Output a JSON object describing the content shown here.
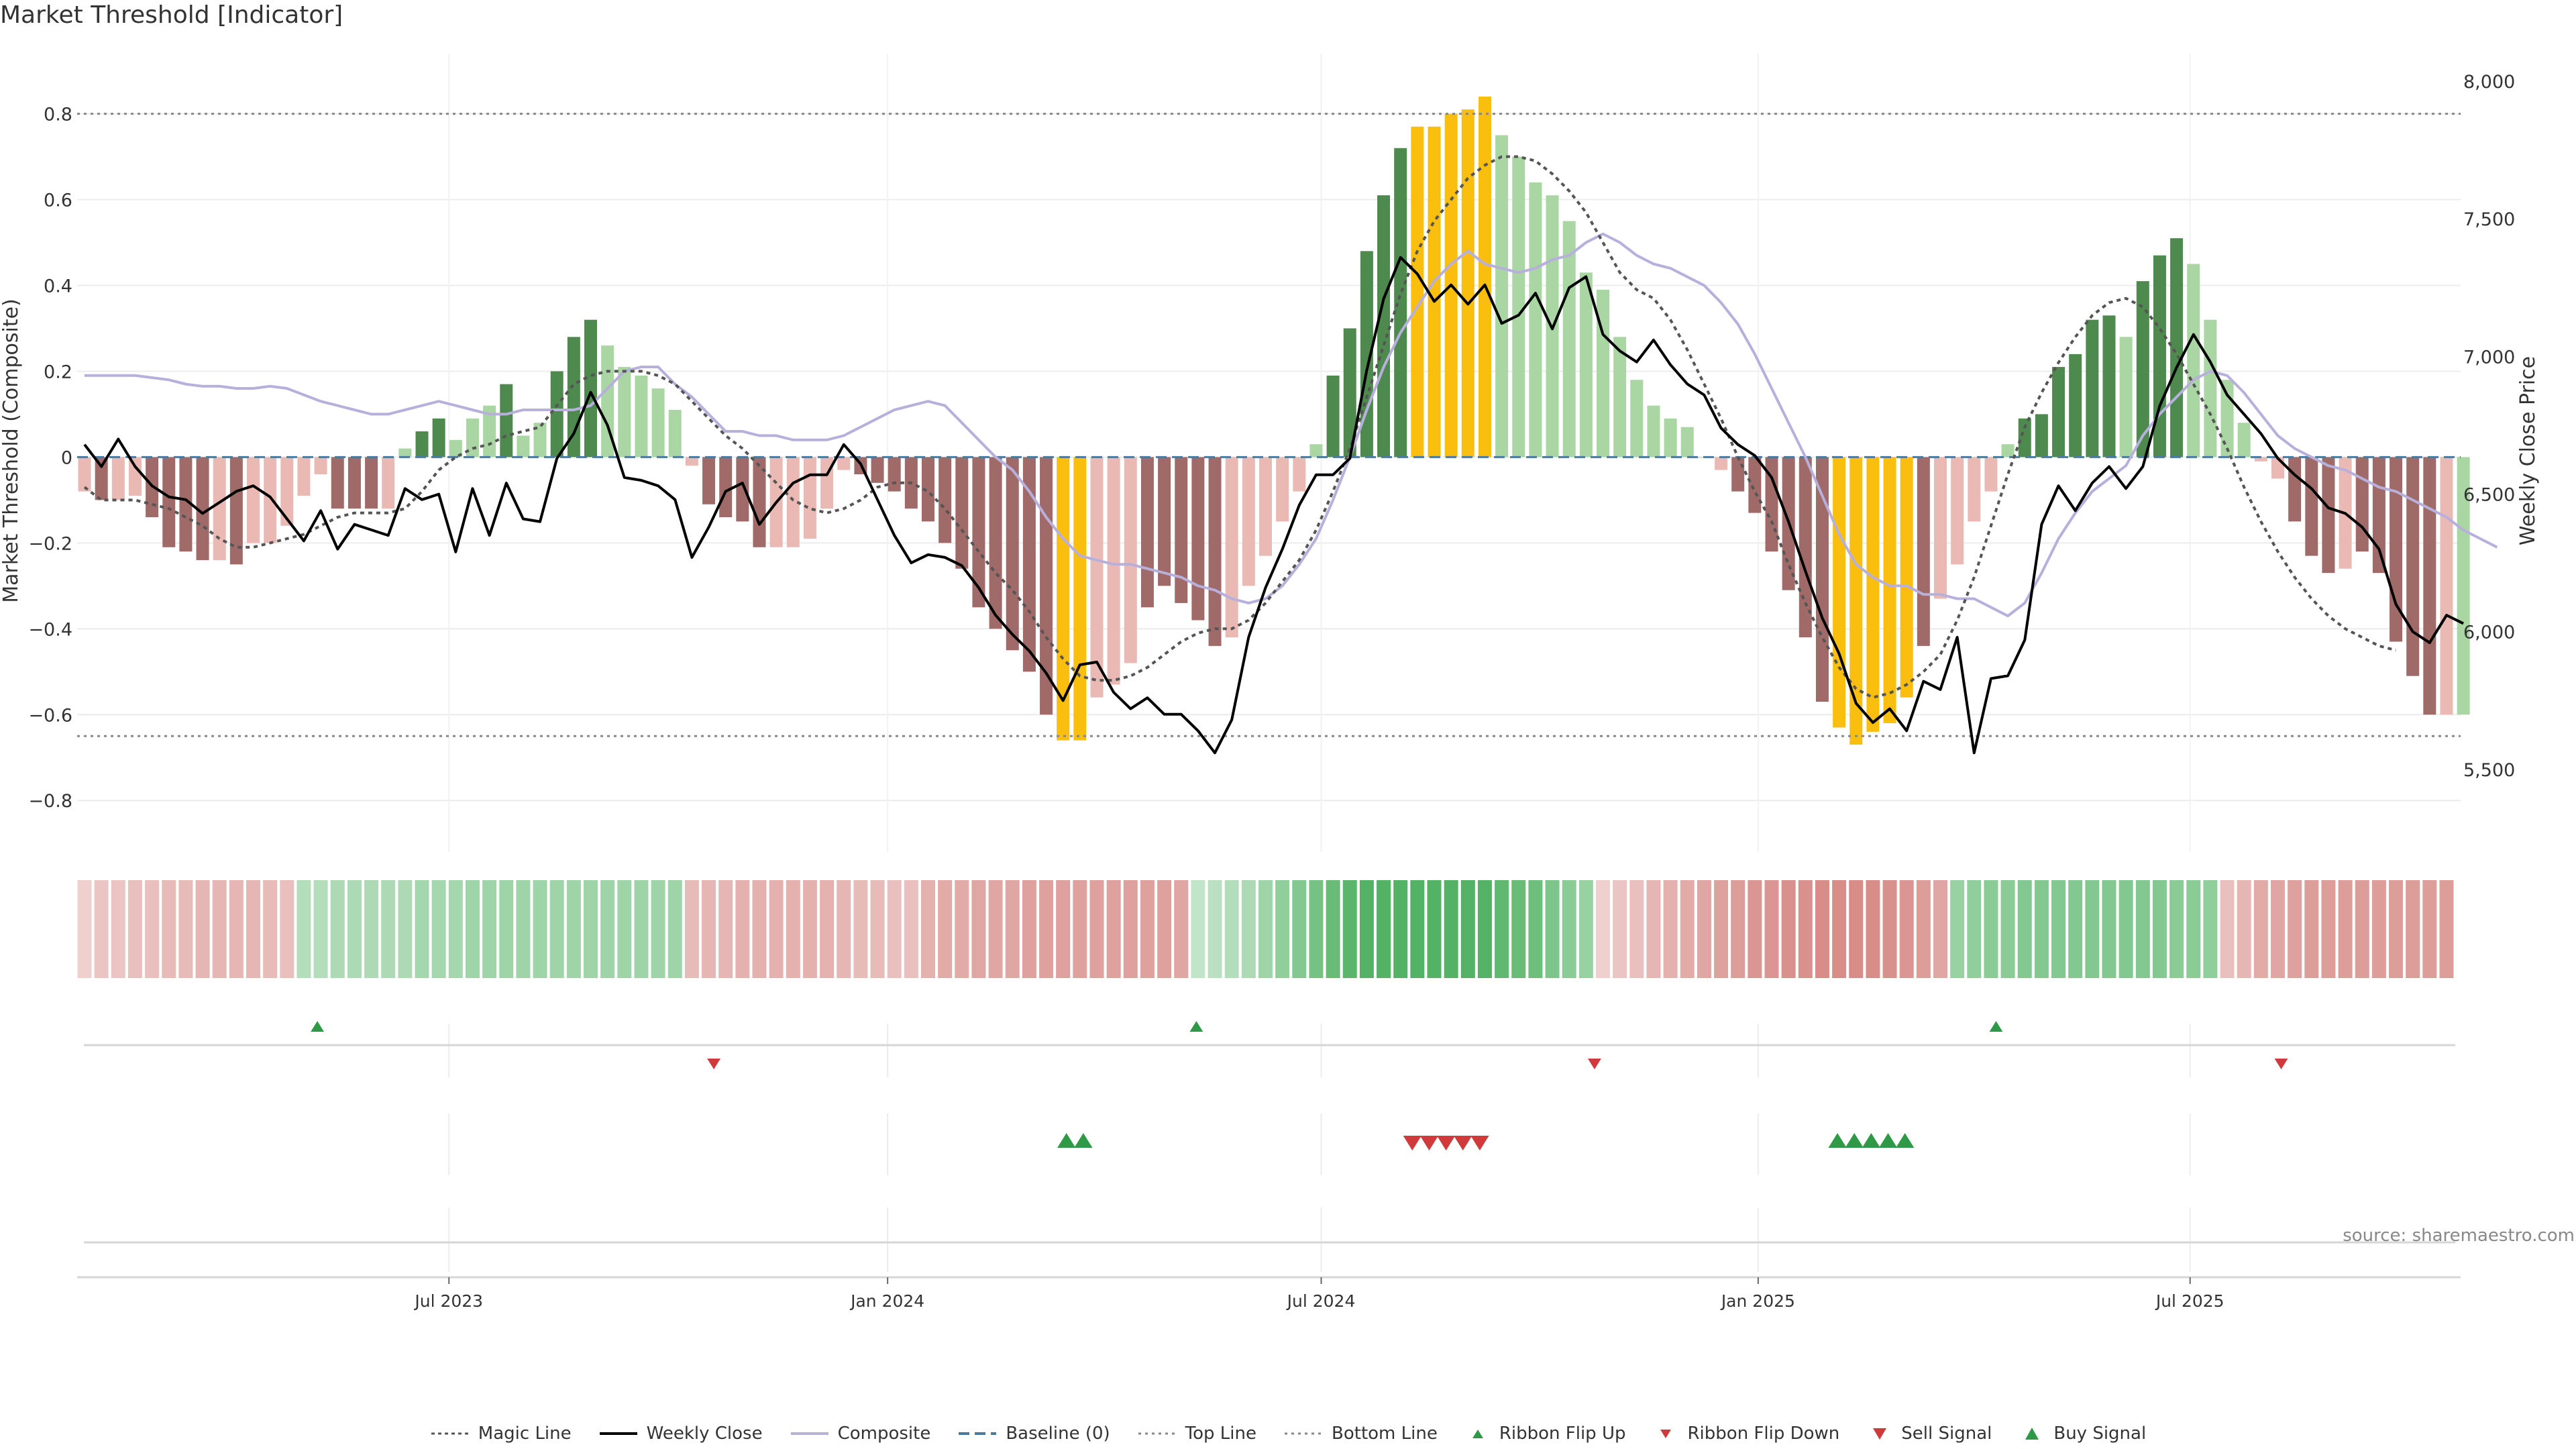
{
  "title": "Market Threshold [Indicator]",
  "source": "source: sharemaestro.com",
  "colors": {
    "strong_pos": "#4e8a4e",
    "weak_pos": "#a9d6a3",
    "strong_neg": "#a06a68",
    "weak_neg": "#eab9b4",
    "extreme": "#f9be0e",
    "weekly_close": "#000000",
    "composite": "#b8b0dc",
    "magic": "#555555",
    "baseline": "#4a7aa0",
    "threshold_line": "#888888",
    "buy": "#2e9a48",
    "sell": "#d03a3a"
  },
  "chart_data": {
    "type": "bar",
    "ylabel_left": "Market Threshold (Composite)",
    "ylabel_right": "Weekly Close Price",
    "ylim_left": [
      -0.92,
      0.94
    ],
    "ylim_right": [
      5200,
      8100
    ],
    "yticks_left": [
      "0.8",
      "0.6",
      "0.4",
      "0.2",
      "0",
      "−0.2",
      "−0.4",
      "−0.6",
      "−0.8"
    ],
    "yticks_left_values": [
      0.8,
      0.6,
      0.4,
      0.2,
      0,
      -0.2,
      -0.4,
      -0.6,
      -0.8
    ],
    "yticks_right": [
      "8,000",
      "7,500",
      "7,000",
      "6,500",
      "6,000",
      "5,500"
    ],
    "yticks_right_values": [
      8000,
      7500,
      7000,
      6500,
      6000,
      5500
    ],
    "x_ticks": [
      "Jul 2023",
      "Jan 2024",
      "Jul 2024",
      "Jan 2025",
      "Jul 2025"
    ],
    "x_tick_index": [
      21.6,
      47.6,
      73.3,
      99.2,
      124.8
    ],
    "top_line": 0.8,
    "bottom_line": -0.65,
    "composite_bars": [
      -0.08,
      -0.1,
      -0.1,
      -0.09,
      -0.14,
      -0.21,
      -0.22,
      -0.24,
      -0.24,
      -0.25,
      -0.2,
      -0.2,
      -0.16,
      -0.09,
      -0.04,
      -0.12,
      -0.12,
      -0.12,
      -0.12,
      0.02,
      0.06,
      0.09,
      0.04,
      0.09,
      0.12,
      0.17,
      0.05,
      0.08,
      0.2,
      0.28,
      0.32,
      0.26,
      0.21,
      0.19,
      0.16,
      0.11,
      -0.02,
      -0.11,
      -0.14,
      -0.15,
      -0.21,
      -0.21,
      -0.21,
      -0.19,
      -0.12,
      -0.03,
      -0.04,
      -0.06,
      -0.08,
      -0.12,
      -0.15,
      -0.2,
      -0.26,
      -0.35,
      -0.4,
      -0.45,
      -0.5,
      -0.6,
      -0.66,
      -0.66,
      -0.56,
      -0.53,
      -0.48,
      -0.35,
      -0.3,
      -0.34,
      -0.38,
      -0.44,
      -0.42,
      -0.3,
      -0.23,
      -0.15,
      -0.08,
      0.03,
      0.19,
      0.3,
      0.48,
      0.61,
      0.72,
      0.77,
      0.77,
      0.8,
      0.81,
      0.84,
      0.75,
      0.7,
      0.64,
      0.61,
      0.55,
      0.43,
      0.39,
      0.28,
      0.18,
      0.12,
      0.09,
      0.07,
      0.0,
      -0.03,
      -0.08,
      -0.13,
      -0.22,
      -0.31,
      -0.42,
      -0.57,
      -0.63,
      -0.67,
      -0.64,
      -0.62,
      -0.56,
      -0.44,
      -0.33,
      -0.25,
      -0.15,
      -0.08,
      0.03,
      0.09,
      0.1,
      0.21,
      0.24,
      0.32,
      0.33,
      0.28,
      0.41,
      0.47,
      0.51,
      0.45,
      0.32,
      0.18,
      0.08,
      -0.01,
      -0.05,
      -0.15,
      -0.23,
      -0.27,
      -0.26,
      -0.22,
      -0.27,
      -0.43,
      -0.51,
      -0.6,
      -0.6,
      -0.6
    ],
    "bar_class": [
      "wn",
      "sn",
      "wn",
      "wn",
      "sn",
      "sn",
      "sn",
      "sn",
      "wn",
      "sn",
      "wn",
      "wn",
      "wn",
      "wn",
      "wn",
      "sn",
      "sn",
      "sn",
      "wn",
      "wp",
      "sp",
      "sp",
      "wp",
      "wp",
      "wp",
      "sp",
      "wp",
      "wp",
      "sp",
      "sp",
      "sp",
      "wp",
      "wp",
      "wp",
      "wp",
      "wp",
      "wn",
      "sn",
      "sn",
      "sn",
      "sn",
      "wn",
      "wn",
      "wn",
      "wn",
      "wn",
      "sn",
      "sn",
      "sn",
      "sn",
      "sn",
      "sn",
      "sn",
      "sn",
      "sn",
      "sn",
      "sn",
      "sn",
      "ex",
      "ex",
      "wn",
      "wn",
      "wn",
      "sn",
      "sn",
      "sn",
      "sn",
      "sn",
      "wn",
      "wn",
      "wn",
      "wn",
      "wn",
      "wp",
      "sp",
      "sp",
      "sp",
      "sp",
      "sp",
      "ex",
      "ex",
      "ex",
      "ex",
      "ex",
      "wp",
      "wp",
      "wp",
      "wp",
      "wp",
      "wp",
      "wp",
      "wp",
      "wp",
      "wp",
      "wp",
      "wp",
      "wp",
      "wn",
      "sn",
      "sn",
      "sn",
      "sn",
      "sn",
      "sn",
      "ex",
      "ex",
      "ex",
      "ex",
      "ex",
      "sn",
      "wn",
      "wn",
      "wn",
      "wn",
      "wp",
      "sp",
      "sp",
      "sp",
      "sp",
      "sp",
      "sp",
      "wp",
      "sp",
      "sp",
      "sp",
      "wp",
      "wp",
      "wp",
      "wp",
      "wn",
      "wn",
      "sn",
      "sn",
      "sn",
      "wn",
      "sn",
      "sn",
      "sn",
      "sn",
      "sn",
      "wn"
    ],
    "weekly_close": [
      6680,
      6600,
      6700,
      6600,
      6530,
      6490,
      6480,
      6430,
      6470,
      6510,
      6530,
      6490,
      6410,
      6330,
      6440,
      6300,
      6390,
      6370,
      6350,
      6520,
      6480,
      6500,
      6290,
      6520,
      6350,
      6540,
      6410,
      6400,
      6630,
      6720,
      6870,
      6750,
      6560,
      6550,
      6530,
      6480,
      6270,
      6380,
      6510,
      6540,
      6390,
      6470,
      6540,
      6570,
      6570,
      6680,
      6610,
      6480,
      6350,
      6250,
      6280,
      6270,
      6240,
      6160,
      6060,
      5990,
      5930,
      5850,
      5750,
      5880,
      5890,
      5780,
      5720,
      5760,
      5700,
      5700,
      5640,
      5560,
      5680,
      5980,
      6160,
      6300,
      6460,
      6570,
      6570,
      6630,
      6950,
      7210,
      7360,
      7300,
      7200,
      7260,
      7190,
      7260,
      7120,
      7150,
      7230,
      7100,
      7250,
      7290,
      7080,
      7020,
      6980,
      7060,
      6970,
      6900,
      6860,
      6740,
      6680,
      6640,
      6560,
      6400,
      6220,
      6050,
      5920,
      5740,
      5670,
      5720,
      5640,
      5820,
      5790,
      5980,
      5560,
      5830,
      5840,
      5970,
      6390,
      6530,
      6440,
      6540,
      6600,
      6520,
      6600,
      6820,
      6960,
      7080,
      6980,
      6860,
      6790,
      6720,
      6630,
      6570,
      6520,
      6450,
      6430,
      6380,
      6300,
      6100,
      6000,
      5960,
      6060,
      6030
    ],
    "composite_line": [
      0.19,
      0.19,
      0.19,
      0.19,
      0.185,
      0.18,
      0.17,
      0.165,
      0.165,
      0.16,
      0.16,
      0.165,
      0.16,
      0.145,
      0.13,
      0.12,
      0.11,
      0.1,
      0.1,
      0.11,
      0.12,
      0.13,
      0.12,
      0.11,
      0.1,
      0.1,
      0.11,
      0.11,
      0.11,
      0.11,
      0.12,
      0.16,
      0.2,
      0.21,
      0.21,
      0.17,
      0.14,
      0.1,
      0.06,
      0.06,
      0.05,
      0.05,
      0.04,
      0.04,
      0.04,
      0.05,
      0.07,
      0.09,
      0.11,
      0.12,
      0.13,
      0.12,
      0.08,
      0.04,
      0.0,
      -0.03,
      -0.08,
      -0.14,
      -0.19,
      -0.23,
      -0.24,
      -0.25,
      -0.25,
      -0.26,
      -0.27,
      -0.28,
      -0.3,
      -0.31,
      -0.33,
      -0.34,
      -0.33,
      -0.3,
      -0.25,
      -0.19,
      -0.1,
      0.0,
      0.11,
      0.21,
      0.29,
      0.35,
      0.41,
      0.45,
      0.48,
      0.45,
      0.44,
      0.43,
      0.44,
      0.46,
      0.47,
      0.5,
      0.52,
      0.5,
      0.47,
      0.45,
      0.44,
      0.42,
      0.4,
      0.36,
      0.31,
      0.24,
      0.16,
      0.08,
      0.0,
      -0.09,
      -0.18,
      -0.25,
      -0.28,
      -0.3,
      -0.3,
      -0.32,
      -0.32,
      -0.33,
      -0.33,
      -0.35,
      -0.37,
      -0.34,
      -0.27,
      -0.19,
      -0.13,
      -0.08,
      -0.05,
      -0.02,
      0.05,
      0.1,
      0.14,
      0.18,
      0.2,
      0.19,
      0.15,
      0.1,
      0.05,
      0.02,
      0.0,
      -0.02,
      -0.03,
      -0.05,
      -0.07,
      -0.08,
      -0.1,
      -0.12,
      -0.14,
      -0.17,
      -0.19,
      -0.21
    ],
    "magic_line": [
      -0.07,
      -0.1,
      -0.1,
      -0.1,
      -0.11,
      -0.12,
      -0.14,
      -0.16,
      -0.19,
      -0.21,
      -0.21,
      -0.2,
      -0.19,
      -0.18,
      -0.16,
      -0.14,
      -0.13,
      -0.13,
      -0.13,
      -0.12,
      -0.08,
      -0.03,
      0.0,
      0.02,
      0.03,
      0.05,
      0.06,
      0.07,
      0.12,
      0.17,
      0.19,
      0.2,
      0.2,
      0.2,
      0.19,
      0.17,
      0.13,
      0.09,
      0.05,
      0.02,
      -0.02,
      -0.06,
      -0.1,
      -0.12,
      -0.13,
      -0.12,
      -0.1,
      -0.07,
      -0.06,
      -0.06,
      -0.08,
      -0.12,
      -0.17,
      -0.22,
      -0.27,
      -0.31,
      -0.36,
      -0.42,
      -0.47,
      -0.51,
      -0.52,
      -0.52,
      -0.51,
      -0.49,
      -0.46,
      -0.43,
      -0.41,
      -0.4,
      -0.4,
      -0.38,
      -0.34,
      -0.29,
      -0.24,
      -0.17,
      -0.08,
      0.02,
      0.14,
      0.26,
      0.38,
      0.48,
      0.55,
      0.6,
      0.65,
      0.68,
      0.7,
      0.7,
      0.69,
      0.66,
      0.62,
      0.57,
      0.5,
      0.43,
      0.39,
      0.37,
      0.32,
      0.25,
      0.17,
      0.09,
      0.0,
      -0.08,
      -0.15,
      -0.25,
      -0.34,
      -0.42,
      -0.49,
      -0.54,
      -0.56,
      -0.55,
      -0.53,
      -0.5,
      -0.46,
      -0.38,
      -0.28,
      -0.16,
      -0.04,
      0.07,
      0.15,
      0.22,
      0.28,
      0.33,
      0.36,
      0.37,
      0.35,
      0.3,
      0.24,
      0.17,
      0.1,
      0.02,
      -0.07,
      -0.15,
      -0.22,
      -0.28,
      -0.33,
      -0.37,
      -0.4,
      -0.42,
      -0.44,
      -0.45
    ],
    "ribbon": [
      -0.2,
      -0.3,
      -0.3,
      -0.35,
      -0.35,
      -0.4,
      -0.4,
      -0.45,
      -0.45,
      -0.45,
      -0.45,
      -0.4,
      -0.35,
      0.3,
      0.3,
      0.35,
      0.35,
      0.35,
      0.35,
      0.35,
      0.4,
      0.4,
      0.4,
      0.45,
      0.45,
      0.45,
      0.45,
      0.45,
      0.45,
      0.45,
      0.45,
      0.45,
      0.45,
      0.45,
      0.45,
      0.45,
      -0.4,
      -0.45,
      -0.45,
      -0.5,
      -0.5,
      -0.5,
      -0.5,
      -0.5,
      -0.5,
      -0.45,
      -0.4,
      -0.4,
      -0.35,
      -0.35,
      -0.5,
      -0.55,
      -0.55,
      -0.6,
      -0.6,
      -0.6,
      -0.65,
      -0.65,
      -0.65,
      -0.65,
      -0.65,
      -0.65,
      -0.65,
      -0.65,
      -0.65,
      -0.6,
      0.2,
      0.25,
      0.3,
      0.35,
      0.45,
      0.55,
      0.65,
      0.75,
      0.85,
      0.95,
      1.0,
      1.0,
      1.0,
      1.0,
      1.0,
      1.0,
      1.0,
      1.0,
      0.9,
      0.85,
      0.8,
      0.7,
      0.6,
      0.5,
      -0.2,
      -0.3,
      -0.35,
      -0.45,
      -0.5,
      -0.55,
      -0.6,
      -0.65,
      -0.7,
      -0.75,
      -0.75,
      -0.8,
      -0.8,
      -0.85,
      -0.85,
      -0.85,
      -0.85,
      -0.8,
      -0.75,
      -0.7,
      -0.6,
      0.5,
      0.55,
      0.6,
      0.6,
      0.65,
      0.65,
      0.65,
      0.65,
      0.65,
      0.65,
      0.65,
      0.65,
      0.65,
      0.6,
      0.6,
      0.55,
      -0.35,
      -0.45,
      -0.55,
      -0.6,
      -0.65,
      -0.7,
      -0.7,
      -0.7,
      -0.7,
      -0.7,
      -0.7,
      -0.7,
      -0.7,
      -0.7
    ],
    "ribbon_flip_up": [
      13.8,
      65.9,
      113.3
    ],
    "ribbon_flip_down": [
      37.3,
      89.5,
      130.2
    ],
    "buy_signal": [
      58.2,
      59.2,
      103.9,
      104.9,
      105.9,
      106.9,
      107.9
    ],
    "sell_signal": [
      78.7,
      79.7,
      80.7,
      81.7,
      82.7
    ]
  },
  "legend": [
    {
      "label": "Magic Line",
      "icon": "dotted-line"
    },
    {
      "label": "Weekly Close",
      "icon": "solid-line"
    },
    {
      "label": "Composite",
      "icon": "lavender-line"
    },
    {
      "label": "Baseline (0)",
      "icon": "dashed-line"
    },
    {
      "label": "Top Line",
      "icon": "dotted-line-light"
    },
    {
      "label": "Bottom Line",
      "icon": "dotted-line-light"
    },
    {
      "label": "Ribbon Flip Up",
      "icon": "triangle-up-small"
    },
    {
      "label": "Ribbon Flip Down",
      "icon": "triangle-down-small"
    },
    {
      "label": "Sell Signal",
      "icon": "triangle-down"
    },
    {
      "label": "Buy Signal",
      "icon": "triangle-up"
    }
  ]
}
